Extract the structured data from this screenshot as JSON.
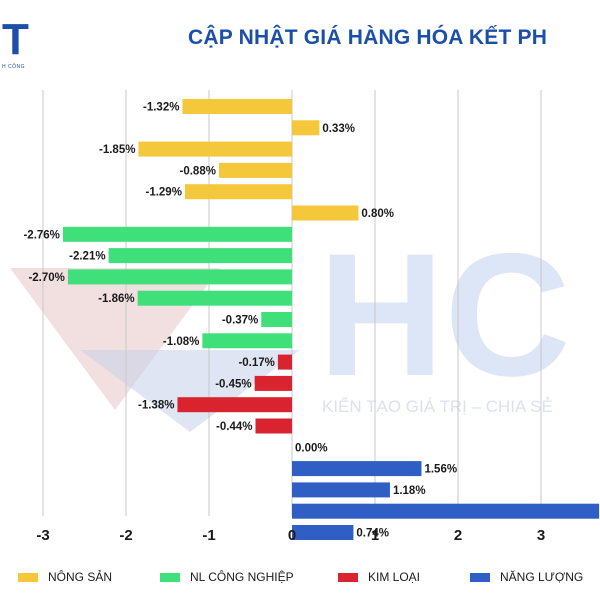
{
  "logo": {
    "mark": "T",
    "tagline": "H CÔNG"
  },
  "header": {
    "title": "CẬP NHẬT GIÁ HÀNG HÓA KẾT PH"
  },
  "watermark": {
    "brand": "HC",
    "slogan": "KIẾN TẠO GIÁ TRỊ – CHIA SẺ"
  },
  "colors": {
    "nong_san": "#f5c73a",
    "cong_nghiep": "#3fe07a",
    "kim_loai": "#d9232f",
    "nang_luong": "#2f5fc4",
    "title": "#1c4fa8",
    "grid": "#c8c8c8"
  },
  "chart_data": {
    "type": "bar",
    "orientation": "horizontal",
    "title": "CẬP NHẬT GIÁ HÀNG HÓA KẾT PH",
    "xlabel": "",
    "ylabel": "",
    "xlim": [
      -3.5,
      3.7
    ],
    "x_ticks": [
      "-3",
      "-2",
      "-1",
      "0",
      "1",
      "2",
      "3"
    ],
    "x_tick_values": [
      -3,
      -2,
      -1,
      0,
      1,
      2,
      3
    ],
    "grid": "vertical",
    "legend_position": "bottom",
    "series": [
      {
        "key": "nong_san",
        "name": "NÔNG SẢN",
        "values": [
          -1.32,
          0.33,
          -1.85,
          -0.88,
          -1.29,
          0.8
        ],
        "labels": [
          "-1.32%",
          "0.33%",
          "-1.85%",
          "-0.88%",
          "-1.29%",
          "0.80%"
        ]
      },
      {
        "key": "cong_nghiep",
        "name": "NL CÔNG NGHIỆP",
        "values": [
          -2.76,
          -2.21,
          -2.7,
          -1.86,
          -0.37,
          -1.08
        ],
        "labels": [
          "-2.76%",
          "-2.21%",
          "-2.70%",
          "-1.86%",
          "-0.37%",
          "-1.08%"
        ]
      },
      {
        "key": "kim_loai",
        "name": "KIM LOẠI",
        "values": [
          -0.17,
          -0.45,
          -1.38,
          -0.44
        ],
        "labels": [
          "-0.17%",
          "-0.45%",
          "-1.38%",
          "-0.44%"
        ]
      },
      {
        "key": "nang_luong",
        "name": "NĂNG LƯỢNG",
        "values": [
          0.0,
          1.56,
          1.18,
          3.7,
          0.74
        ],
        "labels": [
          "0.00%",
          "1.56%",
          "1.18%",
          "",
          "0.74%"
        ]
      }
    ]
  }
}
